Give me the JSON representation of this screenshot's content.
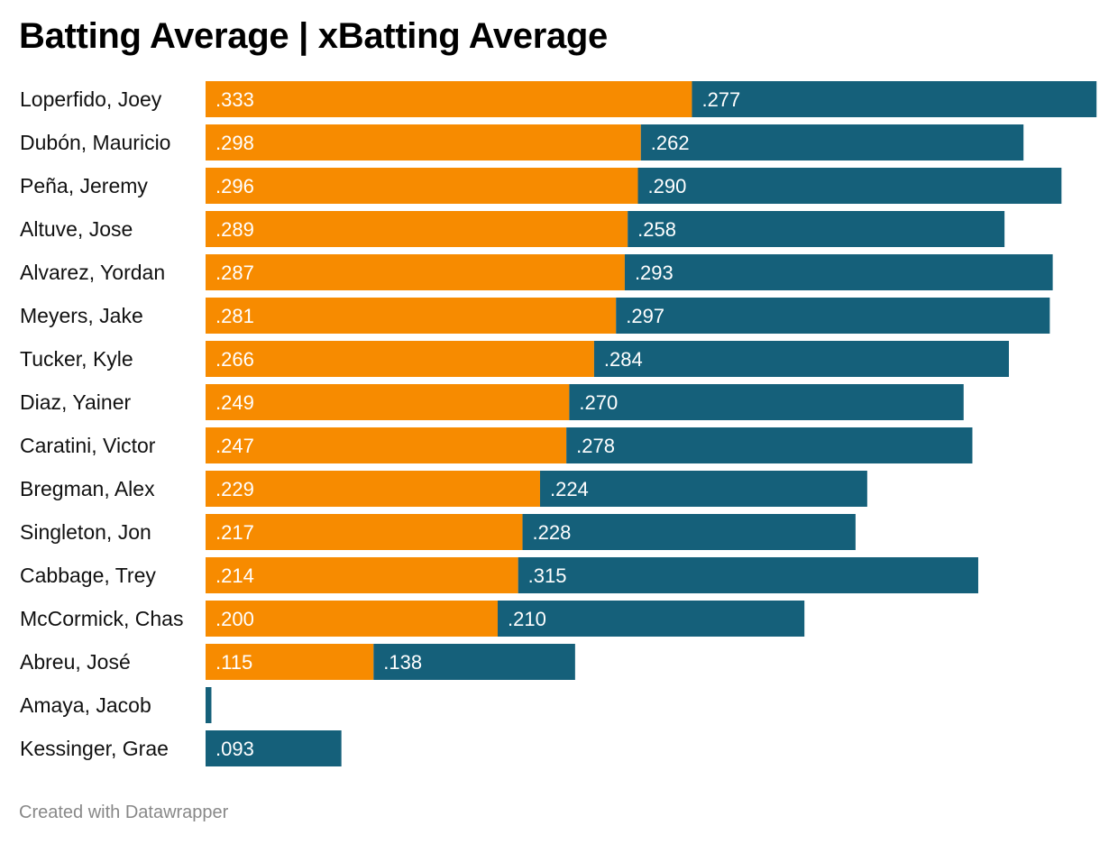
{
  "chart_data": {
    "type": "bar",
    "stacked": true,
    "orientation": "horizontal",
    "title": "Batting Average | xBatting Average",
    "footer": "Created with Datawrapper",
    "colors": {
      "avg": "#f78b00",
      "xavg": "#15607a"
    },
    "categories": [
      "Loperfido, Joey",
      "Dubón, Mauricio",
      "Peña, Jeremy",
      "Altuve, Jose",
      "Alvarez, Yordan",
      "Meyers, Jake",
      "Tucker, Kyle",
      "Diaz, Yainer",
      "Caratini, Victor",
      "Bregman, Alex",
      "Singleton, Jon",
      "Cabbage, Trey",
      "McCormick, Chas",
      "Abreu, José",
      "Amaya, Jacob",
      "Kessinger, Grae"
    ],
    "series": [
      {
        "key": "avg",
        "values": [
          0.333,
          0.298,
          0.296,
          0.289,
          0.287,
          0.281,
          0.266,
          0.249,
          0.247,
          0.229,
          0.217,
          0.214,
          0.2,
          0.115,
          0.0,
          0.0
        ],
        "labels": [
          ".333",
          ".298",
          ".296",
          ".289",
          ".287",
          ".281",
          ".266",
          ".249",
          ".247",
          ".229",
          ".217",
          ".214",
          ".200",
          ".115",
          "",
          ""
        ]
      },
      {
        "key": "xavg",
        "values": [
          0.277,
          0.262,
          0.29,
          0.258,
          0.293,
          0.297,
          0.284,
          0.27,
          0.278,
          0.224,
          0.228,
          0.315,
          0.21,
          0.138,
          0.004,
          0.093
        ],
        "labels": [
          ".277",
          ".262",
          ".290",
          ".258",
          ".293",
          ".297",
          ".284",
          ".270",
          ".278",
          ".224",
          ".228",
          ".315",
          ".210",
          ".138",
          "",
          ".093"
        ]
      }
    ]
  }
}
